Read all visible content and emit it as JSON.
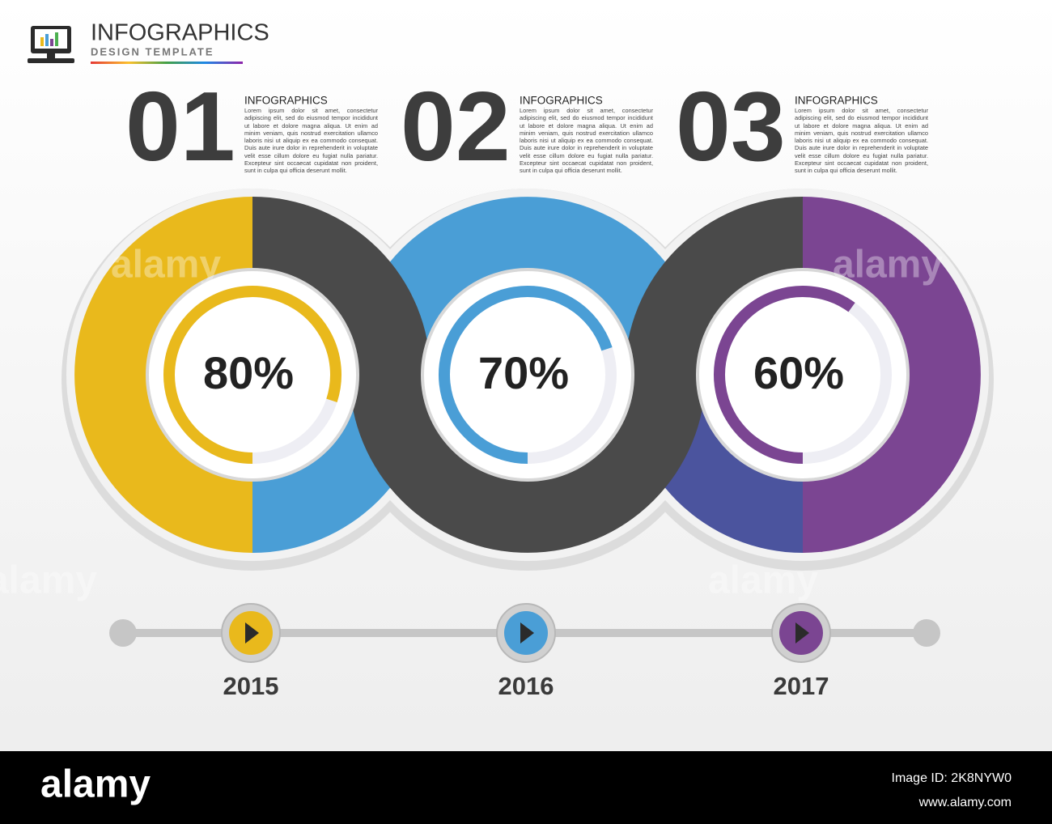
{
  "header": {
    "title": "INFOGRAPHICS",
    "subtitle": "DESIGN TEMPLATE"
  },
  "steps": [
    {
      "number": "01",
      "title": "INFOGRAPHICS",
      "text": "Lorem ipsum dolor sit amet, consectetur adipiscing elit, sed do eiusmod tempor incididunt ut labore et dolore magna aliqua. Ut enim ad minim veniam, quis nostrud exercitation ullamco laboris nisi ut aliquip ex ea commodo consequat. Duis aute irure dolor in reprehenderit in voluptate velit esse cillum dolore eu fugiat nulla pariatur. Excepteur sint occaecat cupidatat non proident, sunt in culpa qui officia deserunt mollit.",
      "percent": 80,
      "percent_label": "80%",
      "year": "2015",
      "color": "#e9b91c"
    },
    {
      "number": "02",
      "title": "INFOGRAPHICS",
      "text": "Lorem ipsum dolor sit amet, consectetur adipiscing elit, sed do eiusmod tempor incididunt ut labore et dolore magna aliqua. Ut enim ad minim veniam, quis nostrud exercitation ullamco laboris nisi ut aliquip ex ea commodo consequat. Duis aute irure dolor in reprehenderit in voluptate velit esse cillum dolore eu fugiat nulla pariatur. Excepteur sint occaecat cupidatat non proident, sunt in culpa qui officia deserunt mollit.",
      "percent": 70,
      "percent_label": "70%",
      "year": "2016",
      "color": "#4a9ed6"
    },
    {
      "number": "03",
      "title": "INFOGRAPHICS",
      "text": "Lorem ipsum dolor sit amet, consectetur adipiscing elit, sed do eiusmod tempor incididunt ut labore et dolore magna aliqua. Ut enim ad minim veniam, quis nostrud exercitation ullamco laboris nisi ut aliquip ex ea commodo consequat. Duis aute irure dolor in reprehenderit in voluptate velit esse cillum dolore eu fugiat nulla pariatur. Excepteur sint occaecat cupidatat non proident, sunt in culpa qui officia deserunt mollit.",
      "percent": 60,
      "percent_label": "60%",
      "year": "2017",
      "color": "#7b4592"
    }
  ],
  "watermark": "alamy",
  "footer": {
    "brand": "alamy",
    "image_id": "Image ID: 2K8NYW0",
    "url": "www.alamy.com"
  }
}
